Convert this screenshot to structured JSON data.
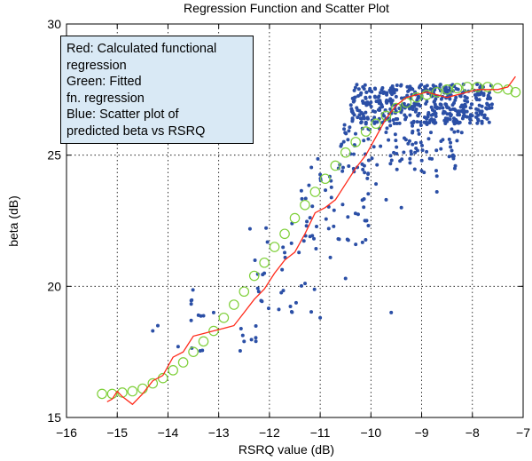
{
  "chart_data": {
    "type": "scatter",
    "title": "Regression Function and Scatter Plot",
    "xlabel": "RSRQ value (dB)",
    "ylabel": "beta (dB)",
    "xlim": [
      -16,
      -7
    ],
    "ylim": [
      15,
      30
    ],
    "xticks": [
      -16,
      -15,
      -14,
      -13,
      -12,
      -11,
      -10,
      -9,
      -8,
      -7
    ],
    "yticks": [
      15,
      20,
      25,
      30
    ],
    "grid": true,
    "legend_position": "top-left",
    "legend_lines": [
      "Red: Calculated functional",
      "regression",
      "Green: Fitted",
      "fn. regression",
      "Blue: Scatter plot of",
      "predicted beta vs RSRQ"
    ],
    "series": [
      {
        "name": "Calculated functional regression",
        "color": "#ff2a1a",
        "style": "line",
        "x": [
          -15.2,
          -15.1,
          -15.0,
          -14.9,
          -14.7,
          -14.5,
          -14.3,
          -14.1,
          -13.9,
          -13.7,
          -13.5,
          -13.3,
          -13.1,
          -12.9,
          -12.7,
          -12.5,
          -12.3,
          -12.1,
          -11.9,
          -11.7,
          -11.5,
          -11.3,
          -11.1,
          -10.9,
          -10.7,
          -10.5,
          -10.3,
          -10.1,
          -9.9,
          -9.7,
          -9.5,
          -9.3,
          -9.1,
          -8.9,
          -8.7,
          -8.5,
          -8.3,
          -8.1,
          -7.9,
          -7.7,
          -7.5,
          -7.3,
          -7.15
        ],
        "values": [
          15.6,
          15.7,
          16.0,
          15.8,
          15.5,
          15.9,
          16.4,
          16.6,
          17.3,
          17.5,
          18.1,
          18.2,
          18.3,
          18.4,
          18.5,
          19.0,
          19.5,
          19.9,
          20.5,
          21.0,
          21.3,
          22.0,
          22.8,
          23.0,
          23.3,
          23.9,
          24.5,
          25.0,
          25.7,
          26.4,
          26.9,
          27.2,
          27.3,
          27.4,
          27.3,
          27.2,
          27.3,
          27.4,
          27.5,
          27.5,
          27.5,
          27.6,
          28.0
        ]
      },
      {
        "name": "Fitted fn. regression",
        "color": "#7fd03a",
        "style": "circles",
        "x": [
          -15.3,
          -15.1,
          -14.9,
          -14.7,
          -14.5,
          -14.3,
          -14.1,
          -13.9,
          -13.7,
          -13.5,
          -13.3,
          -13.1,
          -12.9,
          -12.7,
          -12.5,
          -12.3,
          -12.1,
          -11.9,
          -11.7,
          -11.5,
          -11.3,
          -11.1,
          -10.9,
          -10.7,
          -10.5,
          -10.3,
          -10.1,
          -9.9,
          -9.7,
          -9.5,
          -9.3,
          -9.1,
          -8.9,
          -8.7,
          -8.5,
          -8.3,
          -8.1,
          -7.9,
          -7.7,
          -7.5,
          -7.3,
          -7.15
        ],
        "values": [
          15.9,
          15.9,
          15.95,
          16.0,
          16.1,
          16.3,
          16.5,
          16.8,
          17.1,
          17.5,
          17.9,
          18.3,
          18.8,
          19.3,
          19.8,
          20.4,
          20.9,
          21.5,
          22.0,
          22.6,
          23.1,
          23.6,
          24.1,
          24.6,
          25.1,
          25.5,
          25.9,
          26.2,
          26.5,
          26.8,
          27.0,
          27.2,
          27.3,
          27.4,
          27.5,
          27.55,
          27.6,
          27.6,
          27.6,
          27.55,
          27.5,
          27.4
        ]
      },
      {
        "name": "Scatter plot of predicted beta vs RSRQ",
        "color": "#2b4fa6",
        "style": "dots",
        "clusters": [
          {
            "x_range": [
              -10.4,
              -7.6
            ],
            "y_range": [
              26.2,
              27.7
            ],
            "count": 420
          },
          {
            "x_range": [
              -10.6,
              -8.2
            ],
            "y_range": [
              24.3,
              26.3
            ],
            "count": 110
          },
          {
            "x_range": [
              -11.4,
              -10.0
            ],
            "y_range": [
              21.5,
              25.0
            ],
            "count": 50
          },
          {
            "x_range": [
              -12.5,
              -11.0
            ],
            "y_range": [
              19.0,
              22.5
            ],
            "count": 30
          },
          {
            "x_range": [
              -13.6,
              -12.0
            ],
            "y_range": [
              17.5,
              20.0
            ],
            "count": 20
          }
        ],
        "outliers": [
          [
            -14.3,
            18.3
          ],
          [
            -14.2,
            18.5
          ],
          [
            -13.8,
            17.7
          ],
          [
            -13.4,
            18.9
          ],
          [
            -13.1,
            19.0
          ],
          [
            -12.5,
            17.9
          ],
          [
            -11.0,
            18.8
          ],
          [
            -10.8,
            21.1
          ],
          [
            -10.5,
            20.3
          ],
          [
            -10.3,
            21.6
          ],
          [
            -9.6,
            19.0
          ],
          [
            -9.7,
            23.3
          ],
          [
            -9.9,
            23.9
          ],
          [
            -9.4,
            23.0
          ],
          [
            -8.7,
            23.6
          ],
          [
            -8.7,
            24.2
          ],
          [
            -10.1,
            22.5
          ],
          [
            -11.2,
            21.9
          ]
        ]
      }
    ]
  }
}
